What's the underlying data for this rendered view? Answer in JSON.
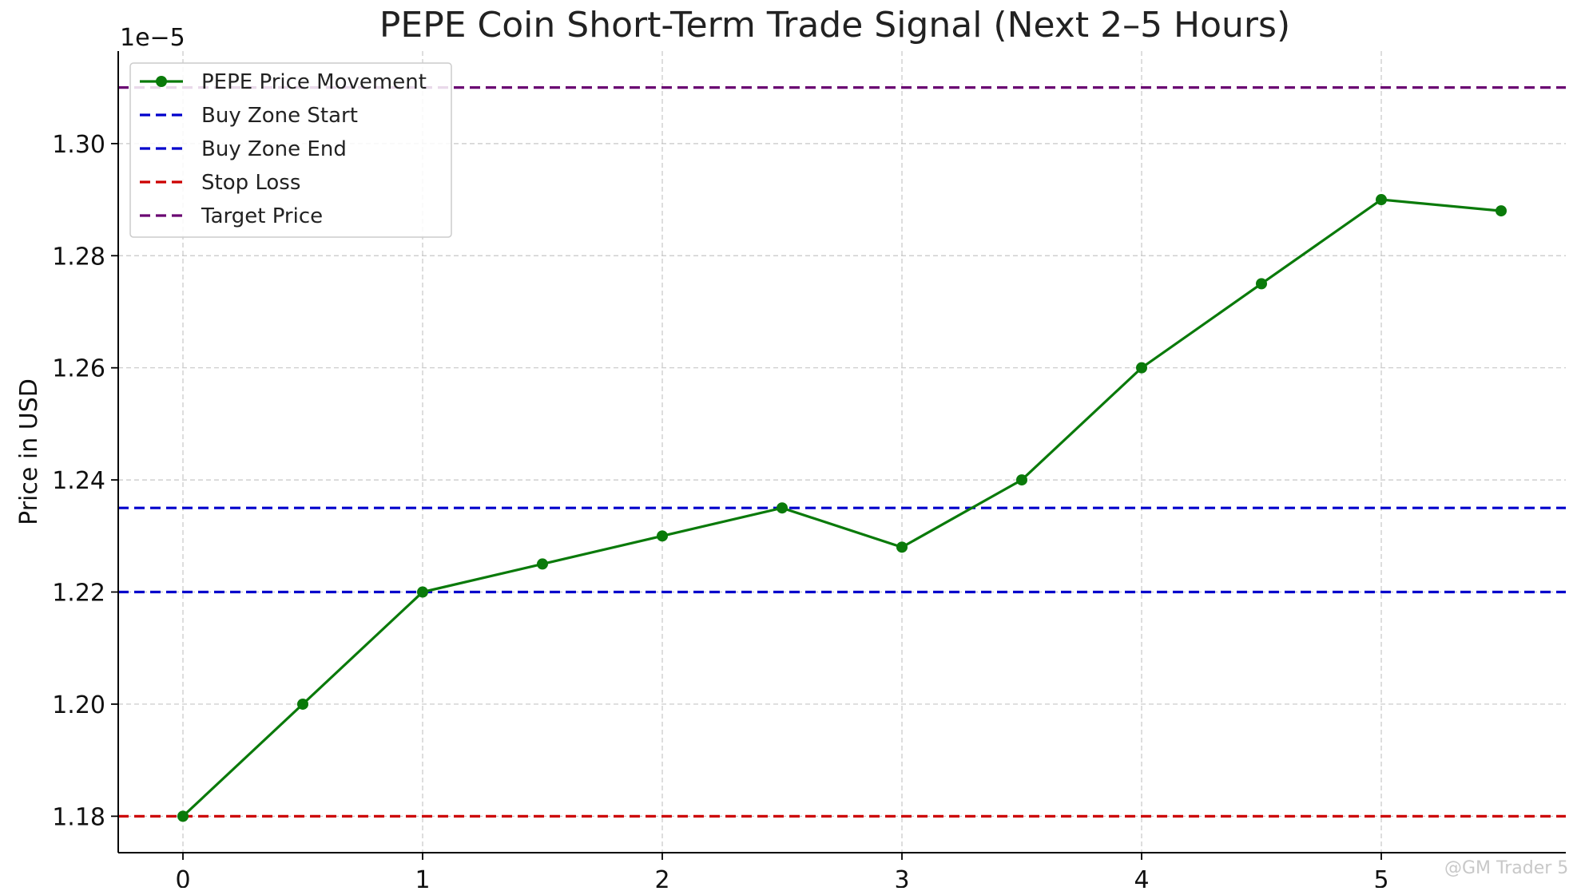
{
  "chart_data": {
    "type": "line",
    "title": "PEPE Coin Short-Term Trade Signal (Next 2–5 Hours)",
    "xlabel": "",
    "ylabel": "Price in USD",
    "y_offset_label": "1e−5",
    "xlim": [
      -0.27,
      5.77
    ],
    "ylim": [
      1.1735,
      1.3165
    ],
    "x_ticks": [
      0,
      1,
      2,
      3,
      4,
      5
    ],
    "y_ticks": [
      1.18,
      1.2,
      1.22,
      1.24,
      1.26,
      1.28,
      1.3
    ],
    "y_tick_labels": [
      "1.18",
      "1.20",
      "1.22",
      "1.24",
      "1.26",
      "1.28",
      "1.30"
    ],
    "grid": true,
    "legend_position": "top-left",
    "series": [
      {
        "name": "PEPE Price Movement",
        "color": "#0a7a0a",
        "marker": "circle",
        "x": [
          0,
          0.5,
          1,
          1.5,
          2,
          2.5,
          3,
          3.5,
          4,
          4.5,
          5,
          5.5
        ],
        "values": [
          1.18,
          1.2,
          1.22,
          1.225,
          1.23,
          1.235,
          1.228,
          1.24,
          1.26,
          1.275,
          1.29,
          1.288
        ]
      }
    ],
    "reference_lines": [
      {
        "name": "Buy Zone Start",
        "value": 1.235,
        "color": "#0000cc"
      },
      {
        "name": "Buy Zone End",
        "value": 1.22,
        "color": "#0000cc"
      },
      {
        "name": "Stop Loss",
        "value": 1.18,
        "color": "#cc0000"
      },
      {
        "name": "Target Price",
        "value": 1.31,
        "color": "#6a0572"
      }
    ]
  },
  "watermark": {
    "text": "@GM Trader 5"
  }
}
